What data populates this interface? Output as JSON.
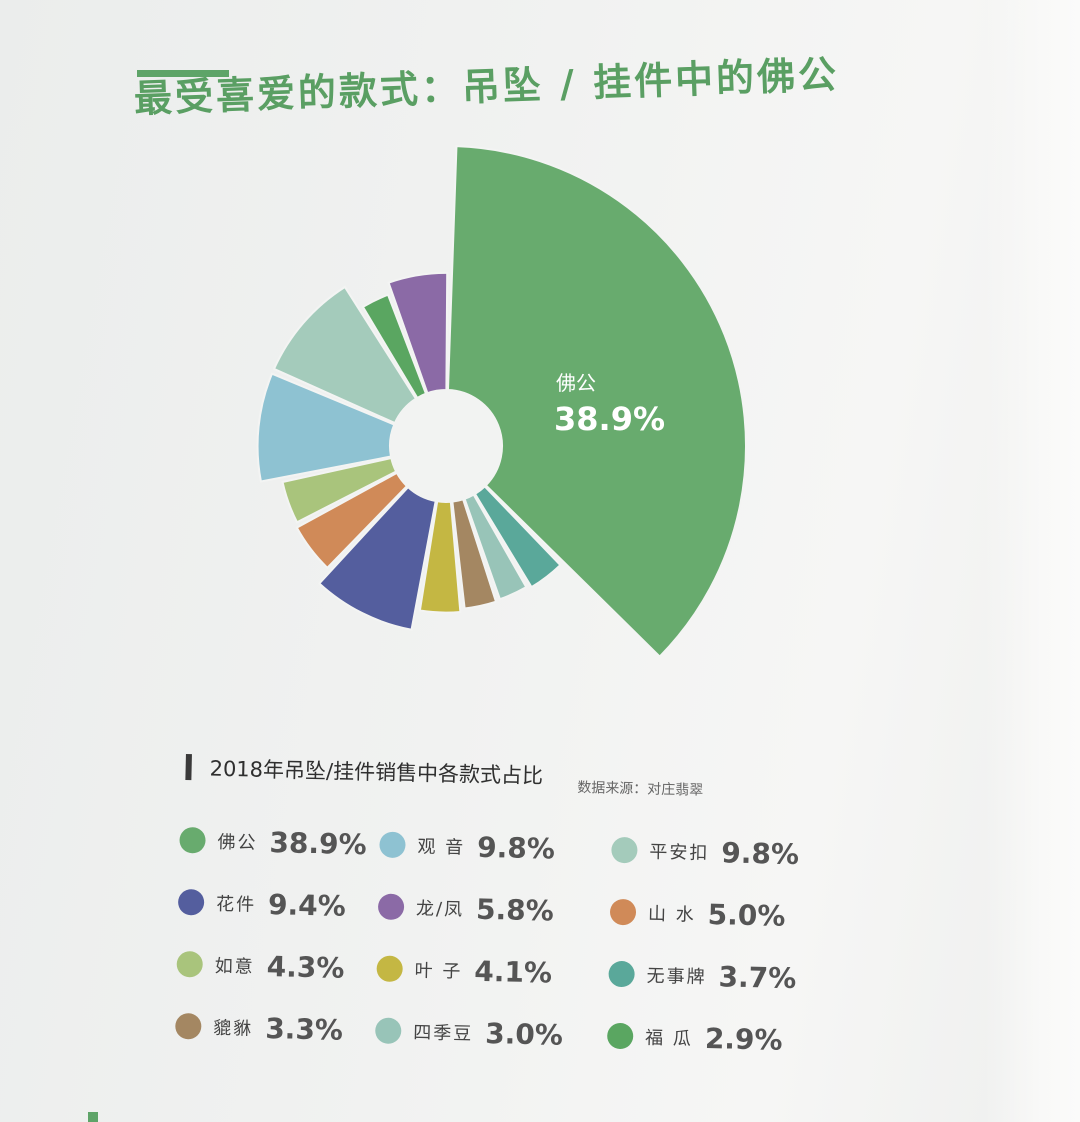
{
  "title": "最受喜爱的款式：吊坠 / 挂件中的佛公",
  "subtitle": "2018年吊坠/挂件销售中各款式占比",
  "source": "数据来源：对庄翡翠",
  "chart_data": {
    "type": "pie",
    "title": "2018年吊坠/挂件销售中各款式占比",
    "highlight": {
      "name": "佛公",
      "label": "38.9%"
    },
    "slices": [
      {
        "name": "佛公",
        "value": 38.9,
        "label": "38.9%",
        "color": "#68ab6e"
      },
      {
        "name": "观 音",
        "value": 9.8,
        "label": "9.8%",
        "color": "#8ec2d2"
      },
      {
        "name": "平安扣",
        "value": 9.8,
        "label": "9.8%",
        "color": "#a4cbbb"
      },
      {
        "name": "花件",
        "value": 9.4,
        "label": "9.4%",
        "color": "#545e9e"
      },
      {
        "name": "龙/凤",
        "value": 5.8,
        "label": "5.8%",
        "color": "#8b6aa6"
      },
      {
        "name": "山 水",
        "value": 5.0,
        "label": "5.0%",
        "color": "#d08a58"
      },
      {
        "name": "如意",
        "value": 4.3,
        "label": "4.3%",
        "color": "#a9c47c"
      },
      {
        "name": "叶 子",
        "value": 4.1,
        "label": "4.1%",
        "color": "#c4b743"
      },
      {
        "name": "无事牌",
        "value": 3.7,
        "label": "3.7%",
        "color": "#5aa89a"
      },
      {
        "name": "貔貅",
        "value": 3.3,
        "label": "3.3%",
        "color": "#a48762"
      },
      {
        "name": "四季豆",
        "value": 3.0,
        "label": "3.0%",
        "color": "#98c4b8"
      },
      {
        "name": "福 瓜",
        "value": 2.9,
        "label": "2.9%",
        "color": "#5aa661"
      }
    ]
  }
}
